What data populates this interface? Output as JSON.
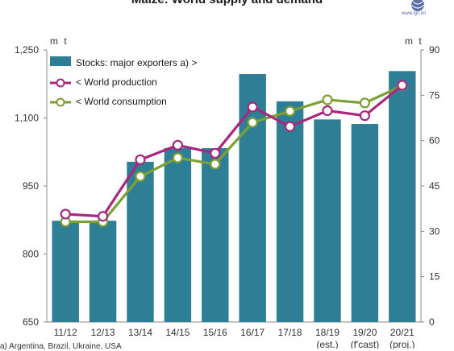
{
  "title": "Maize: World supply and demand",
  "logo_text": "www.igc.int",
  "unit_left": "m t",
  "unit_right": "m t",
  "footnote": "a) Argentina, Brazil, Ukraine, USA",
  "colors": {
    "bars": "#2e7f95",
    "production": "#a8287f",
    "consumption": "#7ca032",
    "axis": "#8a8a8a"
  },
  "chart_data": {
    "type": "bar",
    "categories": [
      "11/12",
      "12/13",
      "13/14",
      "14/15",
      "15/16",
      "16/17",
      "17/18",
      "18/19",
      "19/20",
      "20/21"
    ],
    "category_sublabels": [
      "",
      "",
      "",
      "",
      "",
      "",
      "",
      "(est.)",
      "(f'cast)",
      "(proj.)"
    ],
    "y_left": {
      "ticks": [
        "650",
        "800",
        "950",
        "1,100",
        "1,250"
      ],
      "range": [
        650,
        1250
      ]
    },
    "y_right": {
      "ticks": [
        "0",
        "15",
        "30",
        "45",
        "60",
        "75",
        "90"
      ],
      "range": [
        0,
        90
      ]
    },
    "series": [
      {
        "name": "Stocks: major exporters a) >",
        "axis": "right",
        "kind": "bar",
        "values": [
          33.5,
          33.5,
          53,
          57.5,
          57.5,
          82,
          73,
          67,
          65.5,
          83
        ]
      },
      {
        "name": "< World production",
        "axis": "left",
        "kind": "line",
        "values": [
          888,
          883,
          1008,
          1040,
          1022,
          1124,
          1081,
          1116,
          1105,
          1172
        ]
      },
      {
        "name": "< World consumption",
        "axis": "left",
        "kind": "line",
        "values": [
          871,
          871,
          971,
          1012,
          998,
          1090,
          1115,
          1140,
          1133,
          1171
        ]
      }
    ],
    "legend_position": "top-left",
    "grid": false
  }
}
